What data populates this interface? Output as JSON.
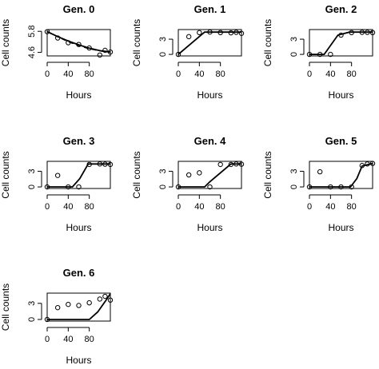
{
  "figure": {
    "background": "#ffffff",
    "ink": "#000000"
  },
  "chart_data": [
    {
      "type": "scatter",
      "title": "Gen. 0",
      "xlabel": "Hours",
      "ylabel": "Cell counts",
      "xlim": [
        0,
        120
      ],
      "ylim": [
        4.4,
        5.9
      ],
      "xticks": [
        0,
        40,
        80
      ],
      "xtick_labels": [
        "0",
        "40",
        "80"
      ],
      "yticks": [
        4.6,
        5.8
      ],
      "ytick_labels": [
        "4.6",
        "5.8"
      ],
      "points": {
        "x": [
          0,
          20,
          40,
          60,
          80,
          100,
          110,
          120
        ],
        "y": [
          5.78,
          5.42,
          5.15,
          5.05,
          4.85,
          4.45,
          4.72,
          4.62
        ]
      },
      "fit": {
        "x": [
          0,
          20,
          40,
          60,
          80,
          100,
          120
        ],
        "y": [
          5.78,
          5.5,
          5.25,
          5.03,
          4.84,
          4.7,
          4.62
        ]
      },
      "fit_dashed": {
        "x": [
          0,
          20,
          40,
          60,
          80,
          100,
          120
        ],
        "y": [
          5.78,
          5.48,
          5.2,
          4.98,
          4.8,
          4.68,
          4.6
        ]
      }
    },
    {
      "type": "scatter",
      "title": "Gen. 1",
      "xlabel": "Hours",
      "ylabel": "Cell counts",
      "xlim": [
        0,
        120
      ],
      "ylim": [
        -0.3,
        4.9
      ],
      "xticks": [
        0,
        40,
        80
      ],
      "xtick_labels": [
        "0",
        "40",
        "80"
      ],
      "yticks": [
        0,
        3
      ],
      "ytick_labels": [
        "0",
        "3"
      ],
      "points": {
        "x": [
          0,
          20,
          40,
          60,
          80,
          100,
          110,
          120
        ],
        "y": [
          0,
          3.5,
          4.3,
          4.4,
          4.3,
          4.25,
          4.35,
          4.15
        ]
      },
      "fit": {
        "x": [
          0,
          50,
          120
        ],
        "y": [
          0,
          4.4,
          4.4
        ]
      }
    },
    {
      "type": "scatter",
      "title": "Gen. 2",
      "xlabel": "Hours",
      "ylabel": "Cell counts",
      "xlim": [
        0,
        120
      ],
      "ylim": [
        -0.3,
        4.9
      ],
      "xticks": [
        0,
        40,
        80
      ],
      "xtick_labels": [
        "0",
        "40",
        "80"
      ],
      "yticks": [
        0,
        3
      ],
      "ytick_labels": [
        "0",
        "3"
      ],
      "points": {
        "x": [
          0,
          20,
          40,
          60,
          80,
          100,
          110,
          120
        ],
        "y": [
          0,
          0,
          0,
          3.8,
          4.3,
          4.35,
          4.35,
          4.3
        ]
      },
      "fit": {
        "x": [
          0,
          28,
          54,
          76,
          120
        ],
        "y": [
          0,
          0,
          3.8,
          4.4,
          4.4
        ]
      }
    },
    {
      "type": "scatter",
      "title": "Gen. 3",
      "xlabel": "Hours",
      "ylabel": "Cell counts",
      "xlim": [
        0,
        120
      ],
      "ylim": [
        -0.3,
        4.9
      ],
      "xticks": [
        0,
        40,
        80
      ],
      "xtick_labels": [
        "0",
        "40",
        "80"
      ],
      "yticks": [
        0,
        3
      ],
      "ytick_labels": [
        "0",
        "3"
      ],
      "points": {
        "x": [
          0,
          20,
          40,
          60,
          80,
          100,
          110,
          120
        ],
        "y": [
          0,
          2.2,
          0,
          0,
          4.3,
          4.4,
          4.35,
          4.3
        ]
      },
      "fit": {
        "x": [
          0,
          48,
          62,
          78,
          120
        ],
        "y": [
          0,
          0,
          1.6,
          4.4,
          4.4
        ]
      }
    },
    {
      "type": "scatter",
      "title": "Gen. 4",
      "xlabel": "Hours",
      "ylabel": "Cell counts",
      "xlim": [
        0,
        120
      ],
      "ylim": [
        -0.3,
        4.9
      ],
      "xticks": [
        0,
        40,
        80
      ],
      "xtick_labels": [
        "0",
        "40",
        "80"
      ],
      "yticks": [
        0,
        3
      ],
      "ytick_labels": [
        "0",
        "3"
      ],
      "points": {
        "x": [
          0,
          20,
          40,
          60,
          80,
          100,
          110,
          120
        ],
        "y": [
          0,
          2.3,
          2.7,
          0,
          4.3,
          4.3,
          4.4,
          4.35
        ]
      },
      "fit": {
        "x": [
          0,
          50,
          60,
          100,
          120
        ],
        "y": [
          0,
          0,
          1.0,
          4.4,
          4.4
        ]
      }
    },
    {
      "type": "scatter",
      "title": "Gen. 5",
      "xlabel": "Hours",
      "ylabel": "Cell counts",
      "xlim": [
        0,
        120
      ],
      "ylim": [
        -0.3,
        4.9
      ],
      "xticks": [
        0,
        40,
        80
      ],
      "xtick_labels": [
        "0",
        "40",
        "80"
      ],
      "yticks": [
        0,
        3
      ],
      "ytick_labels": [
        "0",
        "3"
      ],
      "points": {
        "x": [
          0,
          20,
          40,
          60,
          80,
          100,
          110,
          120
        ],
        "y": [
          0,
          2.9,
          0,
          0,
          0,
          4.1,
          4.4,
          4.5
        ]
      },
      "fit": {
        "x": [
          0,
          78,
          90,
          100,
          120
        ],
        "y": [
          0,
          0,
          1.6,
          4.0,
          4.5
        ]
      }
    },
    {
      "type": "scatter",
      "title": "Gen. 6",
      "xlabel": "Hours",
      "ylabel": "Cell counts",
      "xlim": [
        0,
        120
      ],
      "ylim": [
        -0.3,
        4.9
      ],
      "xticks": [
        0,
        40,
        80
      ],
      "xtick_labels": [
        "0",
        "40",
        "80"
      ],
      "yticks": [
        0,
        3
      ],
      "ytick_labels": [
        "0",
        "3"
      ],
      "points": {
        "x": [
          0,
          20,
          40,
          60,
          80,
          100,
          110,
          120
        ],
        "y": [
          0,
          2.2,
          2.8,
          2.6,
          3.1,
          3.8,
          4.3,
          3.6
        ]
      },
      "fit": {
        "x": [
          0,
          80,
          96,
          112,
          120
        ],
        "y": [
          0,
          0,
          1.4,
          3.6,
          4.8
        ]
      }
    }
  ]
}
